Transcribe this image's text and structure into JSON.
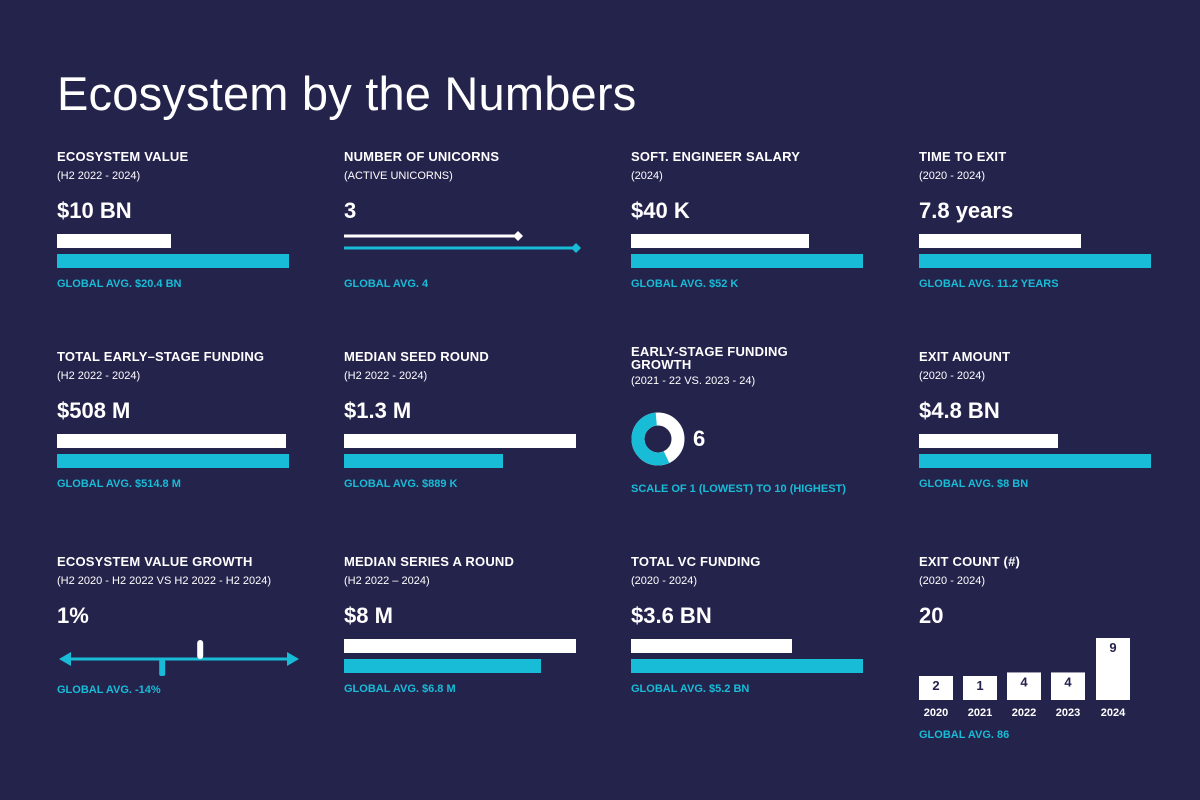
{
  "title": "Ecosystem by the Numbers",
  "colors": {
    "background": "#24234c",
    "ecosystem": "#ffffff",
    "global": "#18bcd7"
  },
  "chart_data": [
    {
      "type": "bar",
      "title": "ECOSYSTEM VALUE",
      "subtitle": "(H2 2022 - 2024)",
      "display": "$10 BN",
      "series": [
        {
          "values": [
            10
          ]
        },
        {
          "values": [
            20.4
          ]
        }
      ],
      "global_label": "GLOBAL AVG. $20.4 BN"
    },
    {
      "type": "line",
      "title": "NUMBER OF UNICORNS",
      "subtitle": "(ACTIVE UNICORNS)",
      "display": "3",
      "series": [
        {
          "values": [
            3
          ]
        },
        {
          "values": [
            4
          ]
        }
      ],
      "global_label": "GLOBAL AVG. 4"
    },
    {
      "type": "bar",
      "title": "SOFT. ENGINEER SALARY",
      "subtitle": "(2024)",
      "display": "$40 K",
      "series": [
        {
          "values": [
            40
          ]
        },
        {
          "values": [
            52
          ]
        }
      ],
      "global_label": "GLOBAL AVG. $52 K"
    },
    {
      "type": "bar",
      "title": "TIME TO EXIT",
      "subtitle": "(2020 - 2024)",
      "display": "7.8 years",
      "series": [
        {
          "values": [
            7.8
          ]
        },
        {
          "values": [
            11.2
          ]
        }
      ],
      "global_label": "GLOBAL AVG. 11.2 YEARS"
    },
    {
      "type": "bar",
      "title": "TOTAL EARLY–STAGE FUNDING",
      "subtitle": "(H2 2022 - 2024)",
      "display": "$508 M",
      "series": [
        {
          "values": [
            508
          ]
        },
        {
          "values": [
            514.8
          ]
        }
      ],
      "global_label": "GLOBAL AVG. $514.8 M"
    },
    {
      "type": "bar",
      "title": "MEDIAN SEED ROUND",
      "subtitle": "(H2 2022 - 2024)",
      "display": "$1.3 M",
      "series": [
        {
          "values": [
            1300
          ]
        },
        {
          "values": [
            889
          ]
        }
      ],
      "global_label": "GLOBAL AVG. $889 K"
    },
    {
      "type": "pie",
      "title": "EARLY-STAGE FUNDING GROWTH",
      "subtitle": "(2021 - 22 VS. 2023 - 24)",
      "display": "6",
      "value": 6,
      "scale": [
        1,
        10
      ],
      "global_label": "SCALE OF 1 (LOWEST) TO 10 (HIGHEST)"
    },
    {
      "type": "bar",
      "title": "EXIT AMOUNT",
      "subtitle": "(2020 - 2024)",
      "display": "$4.8 BN",
      "series": [
        {
          "values": [
            4.8
          ]
        },
        {
          "values": [
            8
          ]
        }
      ],
      "global_label": "GLOBAL AVG. $8 BN"
    },
    {
      "type": "scatter",
      "title": "ECOSYSTEM VALUE GROWTH",
      "subtitle": "(H2 2020 - H2 2022 VS H2 2022 - H2 2024)",
      "display": "1%",
      "series": [
        {
          "values": [
            1
          ]
        },
        {
          "values": [
            -14
          ]
        }
      ],
      "global_label": "GLOBAL AVG. -14%"
    },
    {
      "type": "bar",
      "title": "MEDIAN SERIES A ROUND",
      "subtitle": "(H2 2022 – 2024)",
      "display": "$8 M",
      "series": [
        {
          "values": [
            8
          ]
        },
        {
          "values": [
            6.8
          ]
        }
      ],
      "global_label": "GLOBAL AVG. $6.8 M"
    },
    {
      "type": "bar",
      "title": "TOTAL VC FUNDING",
      "subtitle": "(2020 - 2024)",
      "display": "$3.6 BN",
      "series": [
        {
          "values": [
            3.6
          ]
        },
        {
          "values": [
            5.2
          ]
        }
      ],
      "global_label": "GLOBAL AVG. $5.2 BN"
    },
    {
      "type": "bar",
      "title": "EXIT COUNT (#)",
      "subtitle": "(2020 - 2024)",
      "display": "20",
      "categories": [
        "2020",
        "2021",
        "2022",
        "2023",
        "2024"
      ],
      "values": [
        2,
        1,
        4,
        4,
        9
      ],
      "global_label": "GLOBAL AVG. 86"
    }
  ]
}
